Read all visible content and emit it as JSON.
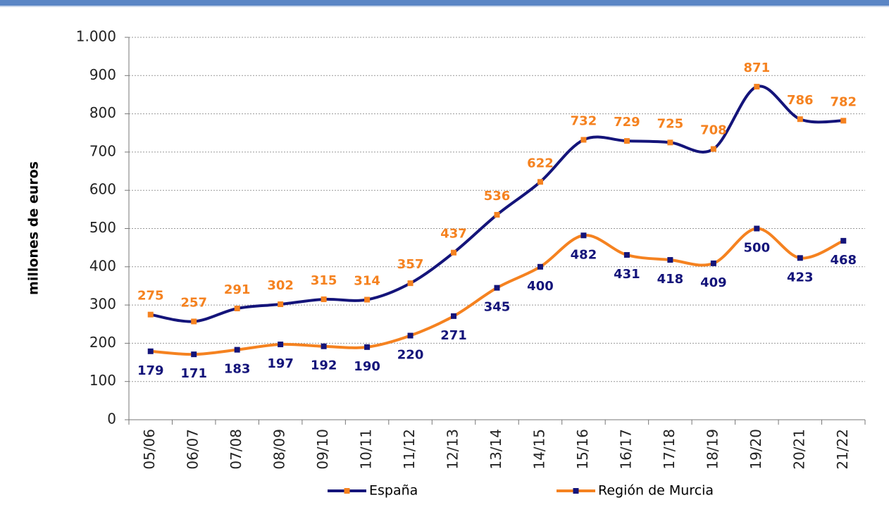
{
  "chart_data": {
    "type": "line",
    "y_label": "millones de euros",
    "categories": [
      "05/06",
      "06/07",
      "07/08",
      "08/09",
      "09/10",
      "10/11",
      "11/12",
      "12/13",
      "13/14",
      "14/15",
      "15/16",
      "16/17",
      "17/18",
      "18/19",
      "19/20",
      "20/21",
      "21/22"
    ],
    "series": [
      {
        "name": "España",
        "color": "#14147a",
        "marker_color": "#f58220",
        "label_color": "#f58220",
        "label_position": "above",
        "values": [
          275,
          257,
          291,
          302,
          315,
          314,
          357,
          437,
          536,
          622,
          732,
          729,
          725,
          708,
          871,
          786,
          782
        ]
      },
      {
        "name": "Región de Murcia",
        "color": "#f58220",
        "marker_color": "#14147a",
        "label_color": "#14147a",
        "label_position": "below",
        "values": [
          179,
          171,
          183,
          197,
          192,
          190,
          220,
          271,
          345,
          400,
          482,
          431,
          418,
          409,
          500,
          423,
          468
        ]
      }
    ],
    "ylim": [
      0,
      1000
    ],
    "yticks": [
      0,
      100,
      200,
      300,
      400,
      500,
      600,
      700,
      800,
      900,
      {
        "value": 1000,
        "label": "1.000"
      }
    ],
    "grid": true,
    "smooth": true,
    "legend": "bottom"
  }
}
